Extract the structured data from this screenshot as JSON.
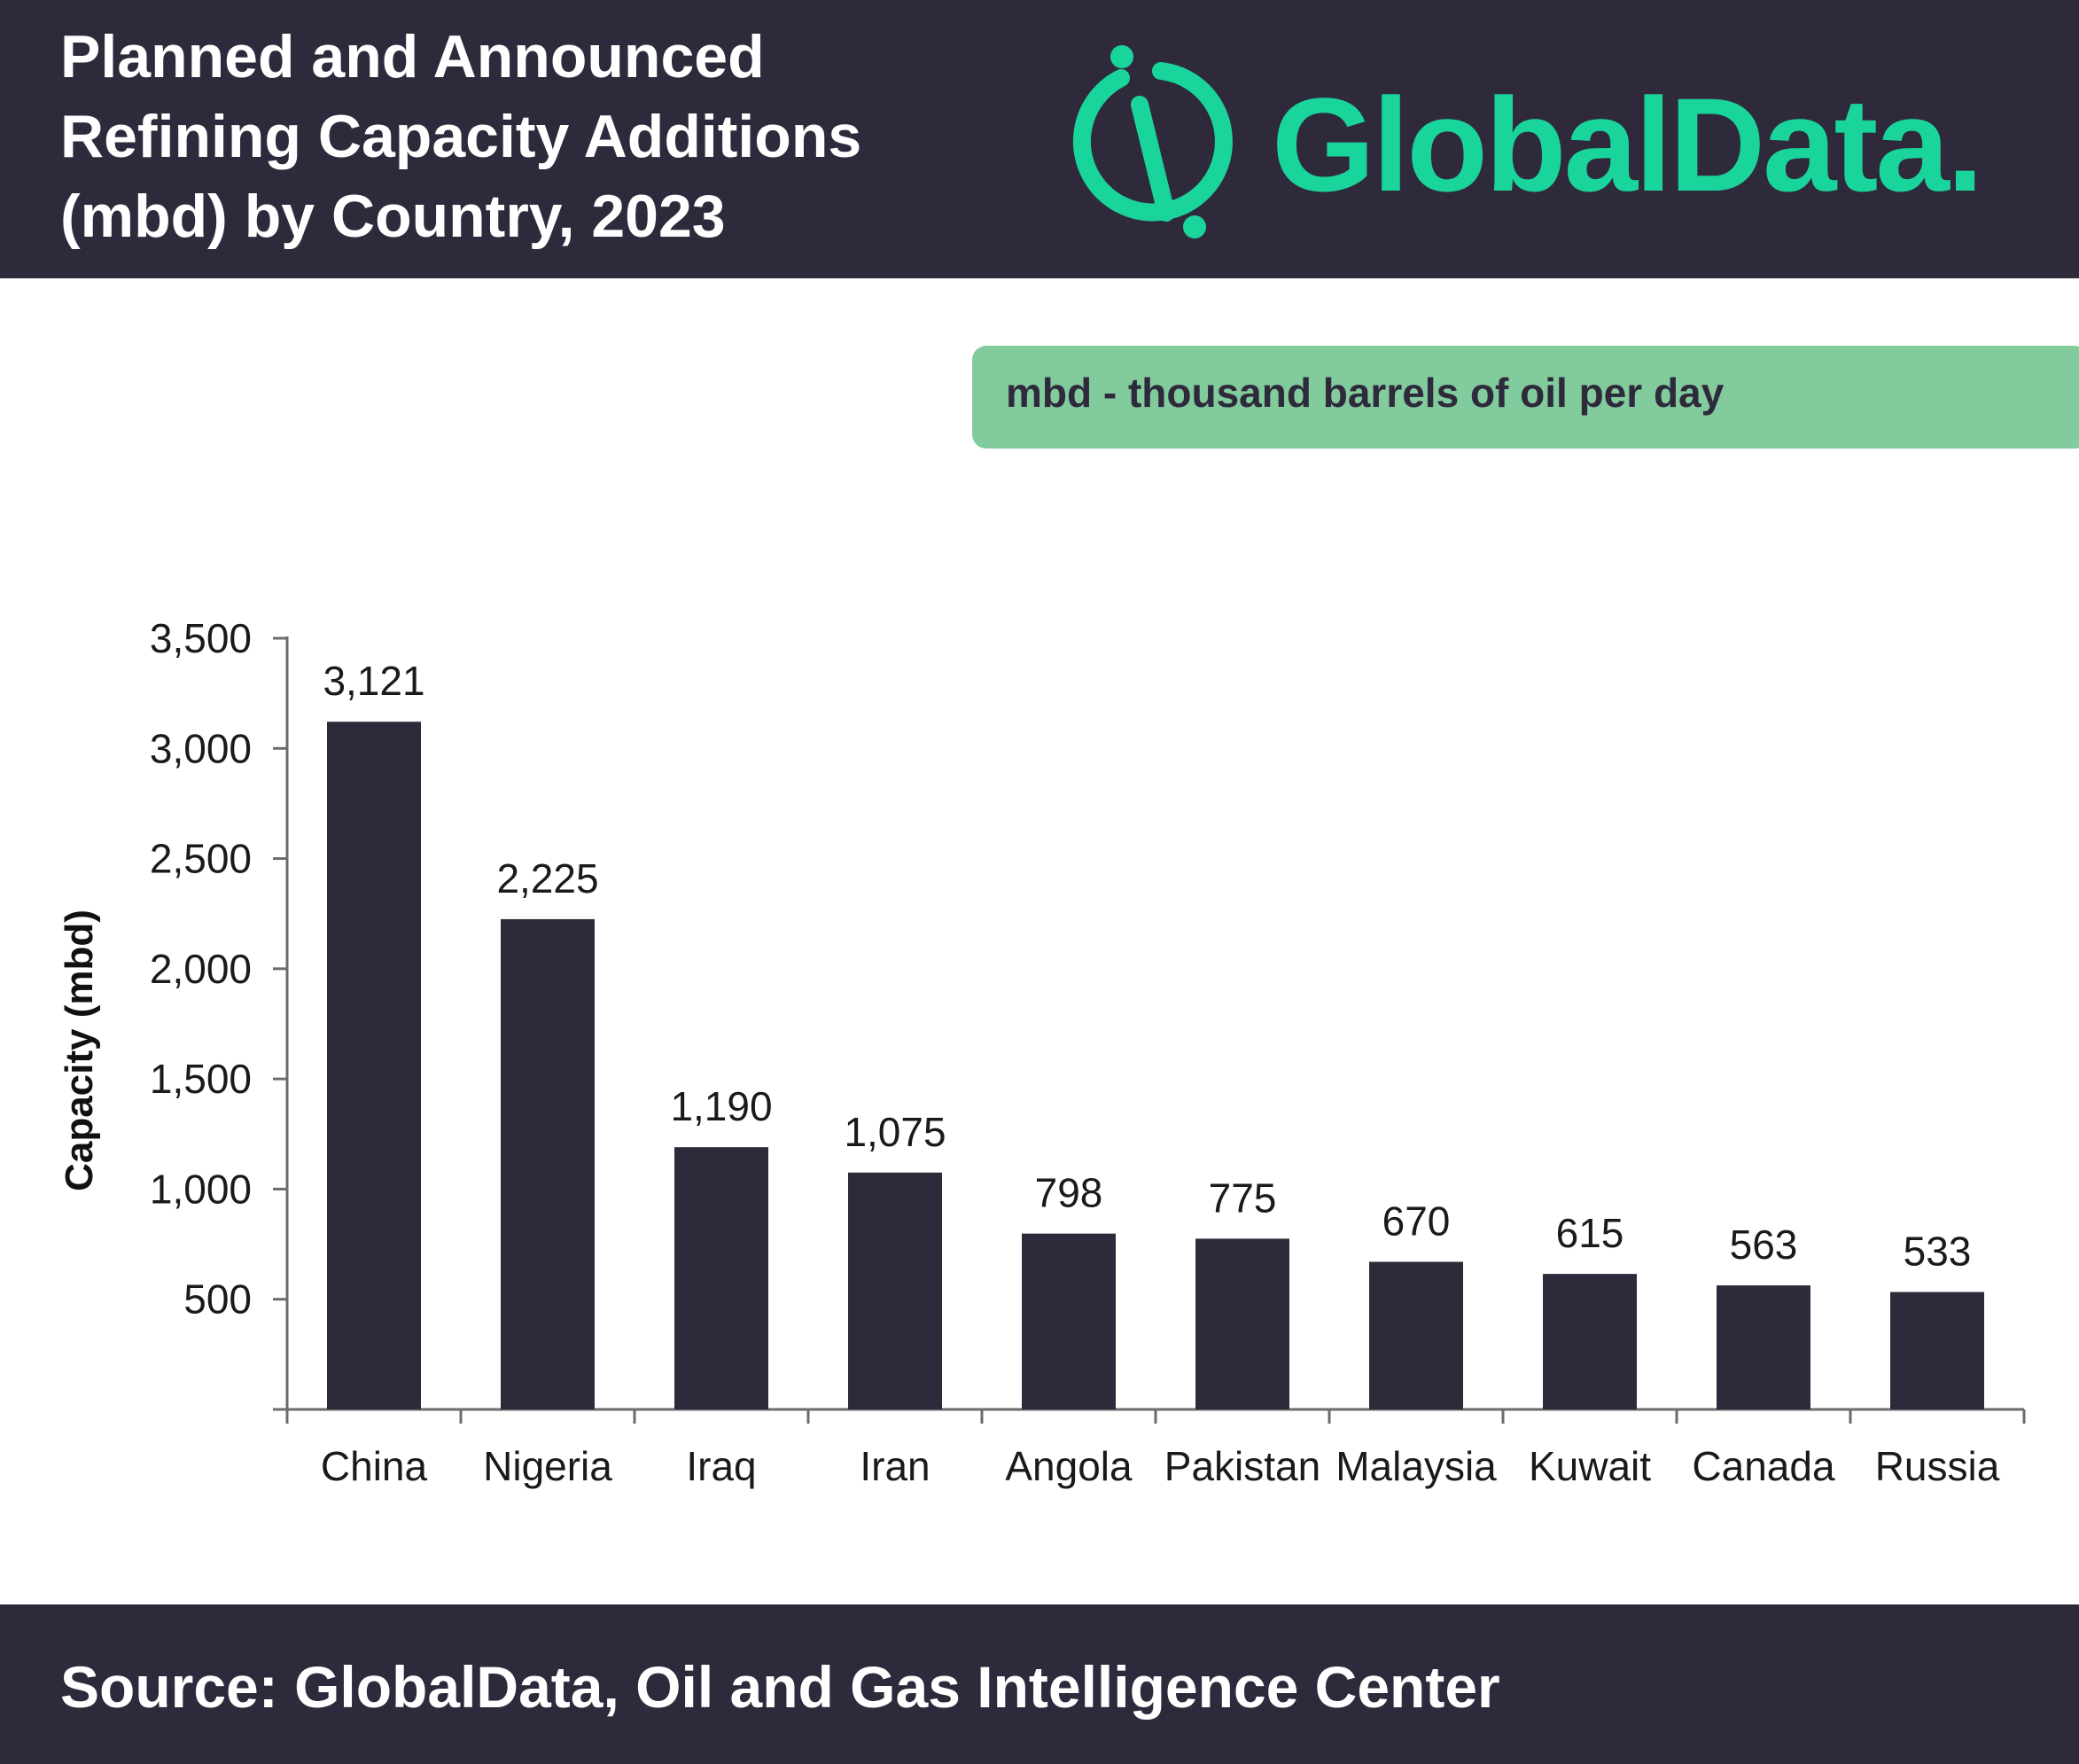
{
  "header": {
    "title_lines": [
      "Planned and Announced",
      "Refining Capacity Additions",
      "(mbd) by Country, 2023"
    ],
    "logo_text": "GlobalData."
  },
  "colors": {
    "dark": "#2e2a3c",
    "brand_green": "#1ad59b",
    "note_box": "#82cb9c",
    "bar": "#2e2a3c"
  },
  "note": "mbd - thousand barrels of oil per day",
  "footer": {
    "source": "Source: GlobalData, Oil and Gas Intelligence Center"
  },
  "chart_data": {
    "type": "bar",
    "title": "Planned and Announced Refining Capacity Additions (mbd) by Country, 2023",
    "xlabel": "",
    "ylabel": "Capacity (mbd)",
    "categories": [
      "China",
      "Nigeria",
      "Iraq",
      "Iran",
      "Angola",
      "Pakistan",
      "Malaysia",
      "Kuwait",
      "Canada",
      "Russia"
    ],
    "values": [
      3121,
      2225,
      1190,
      1075,
      798,
      775,
      670,
      615,
      563,
      533
    ],
    "data_labels": [
      "3,121",
      "2,225",
      "1,190",
      "1,075",
      "798",
      "775",
      "670",
      "615",
      "563",
      "533"
    ],
    "yticks": [
      500,
      1000,
      1500,
      2000,
      2500,
      3000,
      3500
    ],
    "ytick_labels": [
      "500",
      "1,000",
      "1,500",
      "2,000",
      "2,500",
      "3,000",
      "3,500"
    ],
    "ylim": [
      0,
      3500
    ],
    "grid": false,
    "legend": "none"
  }
}
